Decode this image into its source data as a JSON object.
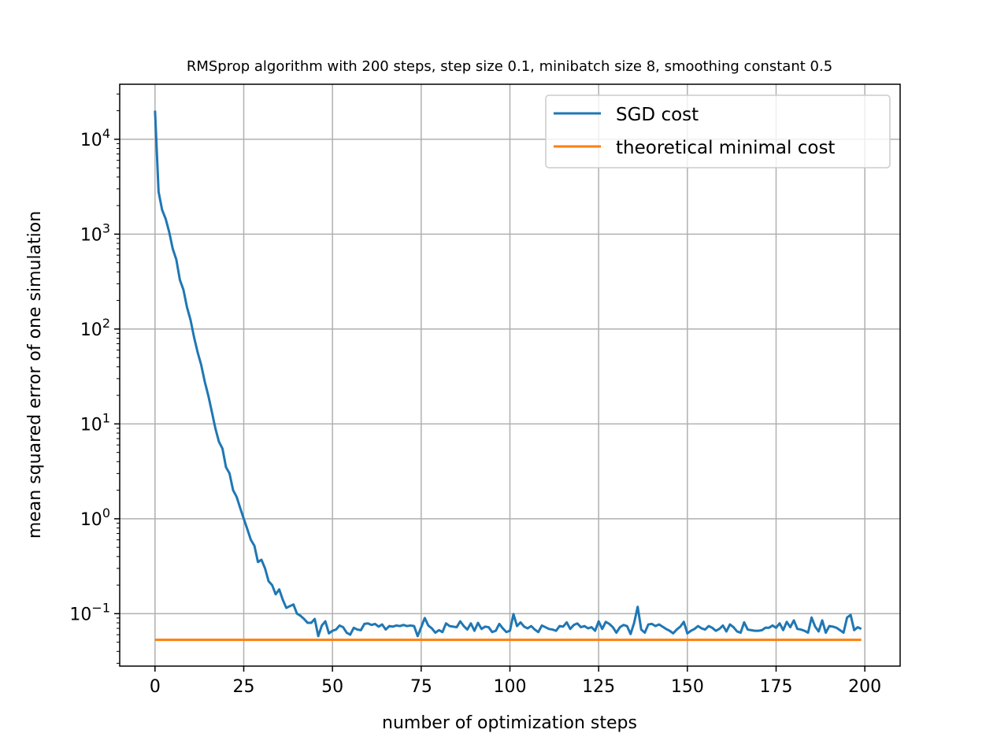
{
  "chart_data": {
    "type": "line",
    "title": "RMSprop algorithm with 200 steps, step size 0.1, minibatch size 8, smoothing constant 0.5",
    "xlabel": "number of optimization steps",
    "ylabel": "mean squared error of one simulation",
    "xlim": [
      -9.95,
      209.95
    ],
    "ylim": [
      0.028,
      38000
    ],
    "yscale": "log",
    "grid": true,
    "legend_position": "top-right",
    "x_ticks": [
      {
        "value": 0,
        "label": "0"
      },
      {
        "value": 25,
        "label": "25"
      },
      {
        "value": 50,
        "label": "50"
      },
      {
        "value": 75,
        "label": "75"
      },
      {
        "value": 100,
        "label": "100"
      },
      {
        "value": 125,
        "label": "125"
      },
      {
        "value": 150,
        "label": "150"
      },
      {
        "value": 175,
        "label": "175"
      },
      {
        "value": 200,
        "label": "200"
      }
    ],
    "y_ticks": [
      {
        "value": 0.1,
        "base": "10",
        "exp": "−1"
      },
      {
        "value": 1,
        "base": "10",
        "exp": "0"
      },
      {
        "value": 10,
        "base": "10",
        "exp": "1"
      },
      {
        "value": 100,
        "base": "10",
        "exp": "2"
      },
      {
        "value": 1000,
        "base": "10",
        "exp": "3"
      },
      {
        "value": 10000,
        "base": "10",
        "exp": "4"
      }
    ],
    "series": [
      {
        "name": "SGD cost",
        "color": "#1f77b4",
        "x_start": 0,
        "x_step": 1,
        "values": [
          20000,
          2800,
          1800,
          1450,
          1050,
          700,
          540,
          330,
          260,
          170,
          125,
          82,
          57,
          42,
          28,
          20,
          13.5,
          9.0,
          6.5,
          5.5,
          3.5,
          3.0,
          2.0,
          1.7,
          1.3,
          1.0,
          0.78,
          0.6,
          0.52,
          0.35,
          0.37,
          0.3,
          0.22,
          0.2,
          0.16,
          0.18,
          0.14,
          0.115,
          0.12,
          0.125,
          0.1,
          0.095,
          0.088,
          0.08,
          0.08,
          0.088,
          0.058,
          0.075,
          0.083,
          0.062,
          0.066,
          0.068,
          0.075,
          0.072,
          0.063,
          0.06,
          0.071,
          0.068,
          0.067,
          0.078,
          0.079,
          0.076,
          0.078,
          0.073,
          0.077,
          0.068,
          0.074,
          0.073,
          0.075,
          0.074,
          0.076,
          0.074,
          0.075,
          0.074,
          0.058,
          0.072,
          0.09,
          0.075,
          0.07,
          0.063,
          0.067,
          0.064,
          0.079,
          0.074,
          0.073,
          0.072,
          0.083,
          0.074,
          0.068,
          0.079,
          0.066,
          0.08,
          0.069,
          0.073,
          0.072,
          0.064,
          0.066,
          0.078,
          0.07,
          0.064,
          0.066,
          0.099,
          0.074,
          0.081,
          0.073,
          0.07,
          0.074,
          0.068,
          0.064,
          0.075,
          0.072,
          0.069,
          0.068,
          0.066,
          0.074,
          0.073,
          0.081,
          0.069,
          0.076,
          0.079,
          0.072,
          0.074,
          0.07,
          0.072,
          0.066,
          0.083,
          0.069,
          0.082,
          0.078,
          0.072,
          0.063,
          0.072,
          0.076,
          0.074,
          0.061,
          0.08,
          0.118,
          0.068,
          0.063,
          0.077,
          0.078,
          0.074,
          0.077,
          0.073,
          0.069,
          0.066,
          0.062,
          0.068,
          0.073,
          0.082,
          0.062,
          0.066,
          0.069,
          0.074,
          0.07,
          0.068,
          0.074,
          0.071,
          0.066,
          0.069,
          0.075,
          0.065,
          0.077,
          0.072,
          0.065,
          0.063,
          0.081,
          0.068,
          0.067,
          0.066,
          0.066,
          0.067,
          0.071,
          0.071,
          0.075,
          0.071,
          0.079,
          0.067,
          0.082,
          0.072,
          0.085,
          0.069,
          0.068,
          0.066,
          0.063,
          0.091,
          0.073,
          0.065,
          0.085,
          0.063,
          0.074,
          0.073,
          0.071,
          0.067,
          0.063,
          0.091,
          0.097,
          0.067,
          0.072,
          0.069
        ]
      },
      {
        "name": "theoretical minimal cost",
        "color": "#ff7f0e",
        "x": [
          0,
          199
        ],
        "values": [
          0.053,
          0.053
        ]
      }
    ]
  }
}
